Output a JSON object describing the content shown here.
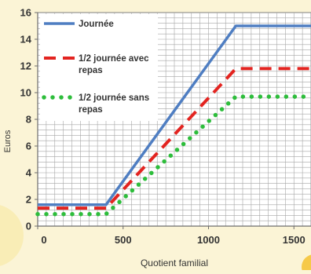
{
  "chart_data": {
    "type": "line",
    "title": "",
    "xlabel": "Quotient familial",
    "ylabel": "Euros",
    "xlim": [
      0,
      1600
    ],
    "ylim": [
      0,
      16
    ],
    "x_ticks": [
      0,
      500,
      1000,
      1500
    ],
    "y_ticks": [
      0,
      2,
      4,
      6,
      8,
      10,
      12,
      14,
      16
    ],
    "grid": true,
    "legend_position": "top-left",
    "series": [
      {
        "name": "Journée",
        "color": "#4f7ec2",
        "style": "solid",
        "x": [
          0,
          400,
          1160,
          1600
        ],
        "y": [
          1.6,
          1.6,
          15.0,
          15.0
        ]
      },
      {
        "name": "1/2 journée avec repas",
        "color": "#e32420",
        "style": "dashed",
        "x": [
          0,
          400,
          1160,
          1600
        ],
        "y": [
          1.35,
          1.35,
          11.8,
          11.8
        ]
      },
      {
        "name": "1/2 journée sans repas",
        "color": "#2dbd3b",
        "style": "dotted",
        "x": [
          0,
          400,
          1160,
          1600
        ],
        "y": [
          0.9,
          0.9,
          9.7,
          9.7
        ]
      }
    ]
  },
  "legend": [
    {
      "line1": "Journée",
      "line2": ""
    },
    {
      "line1": "1/2 journée avec",
      "line2": "repas"
    },
    {
      "line1": "1/2 journée sans",
      "line2": "repas"
    }
  ]
}
